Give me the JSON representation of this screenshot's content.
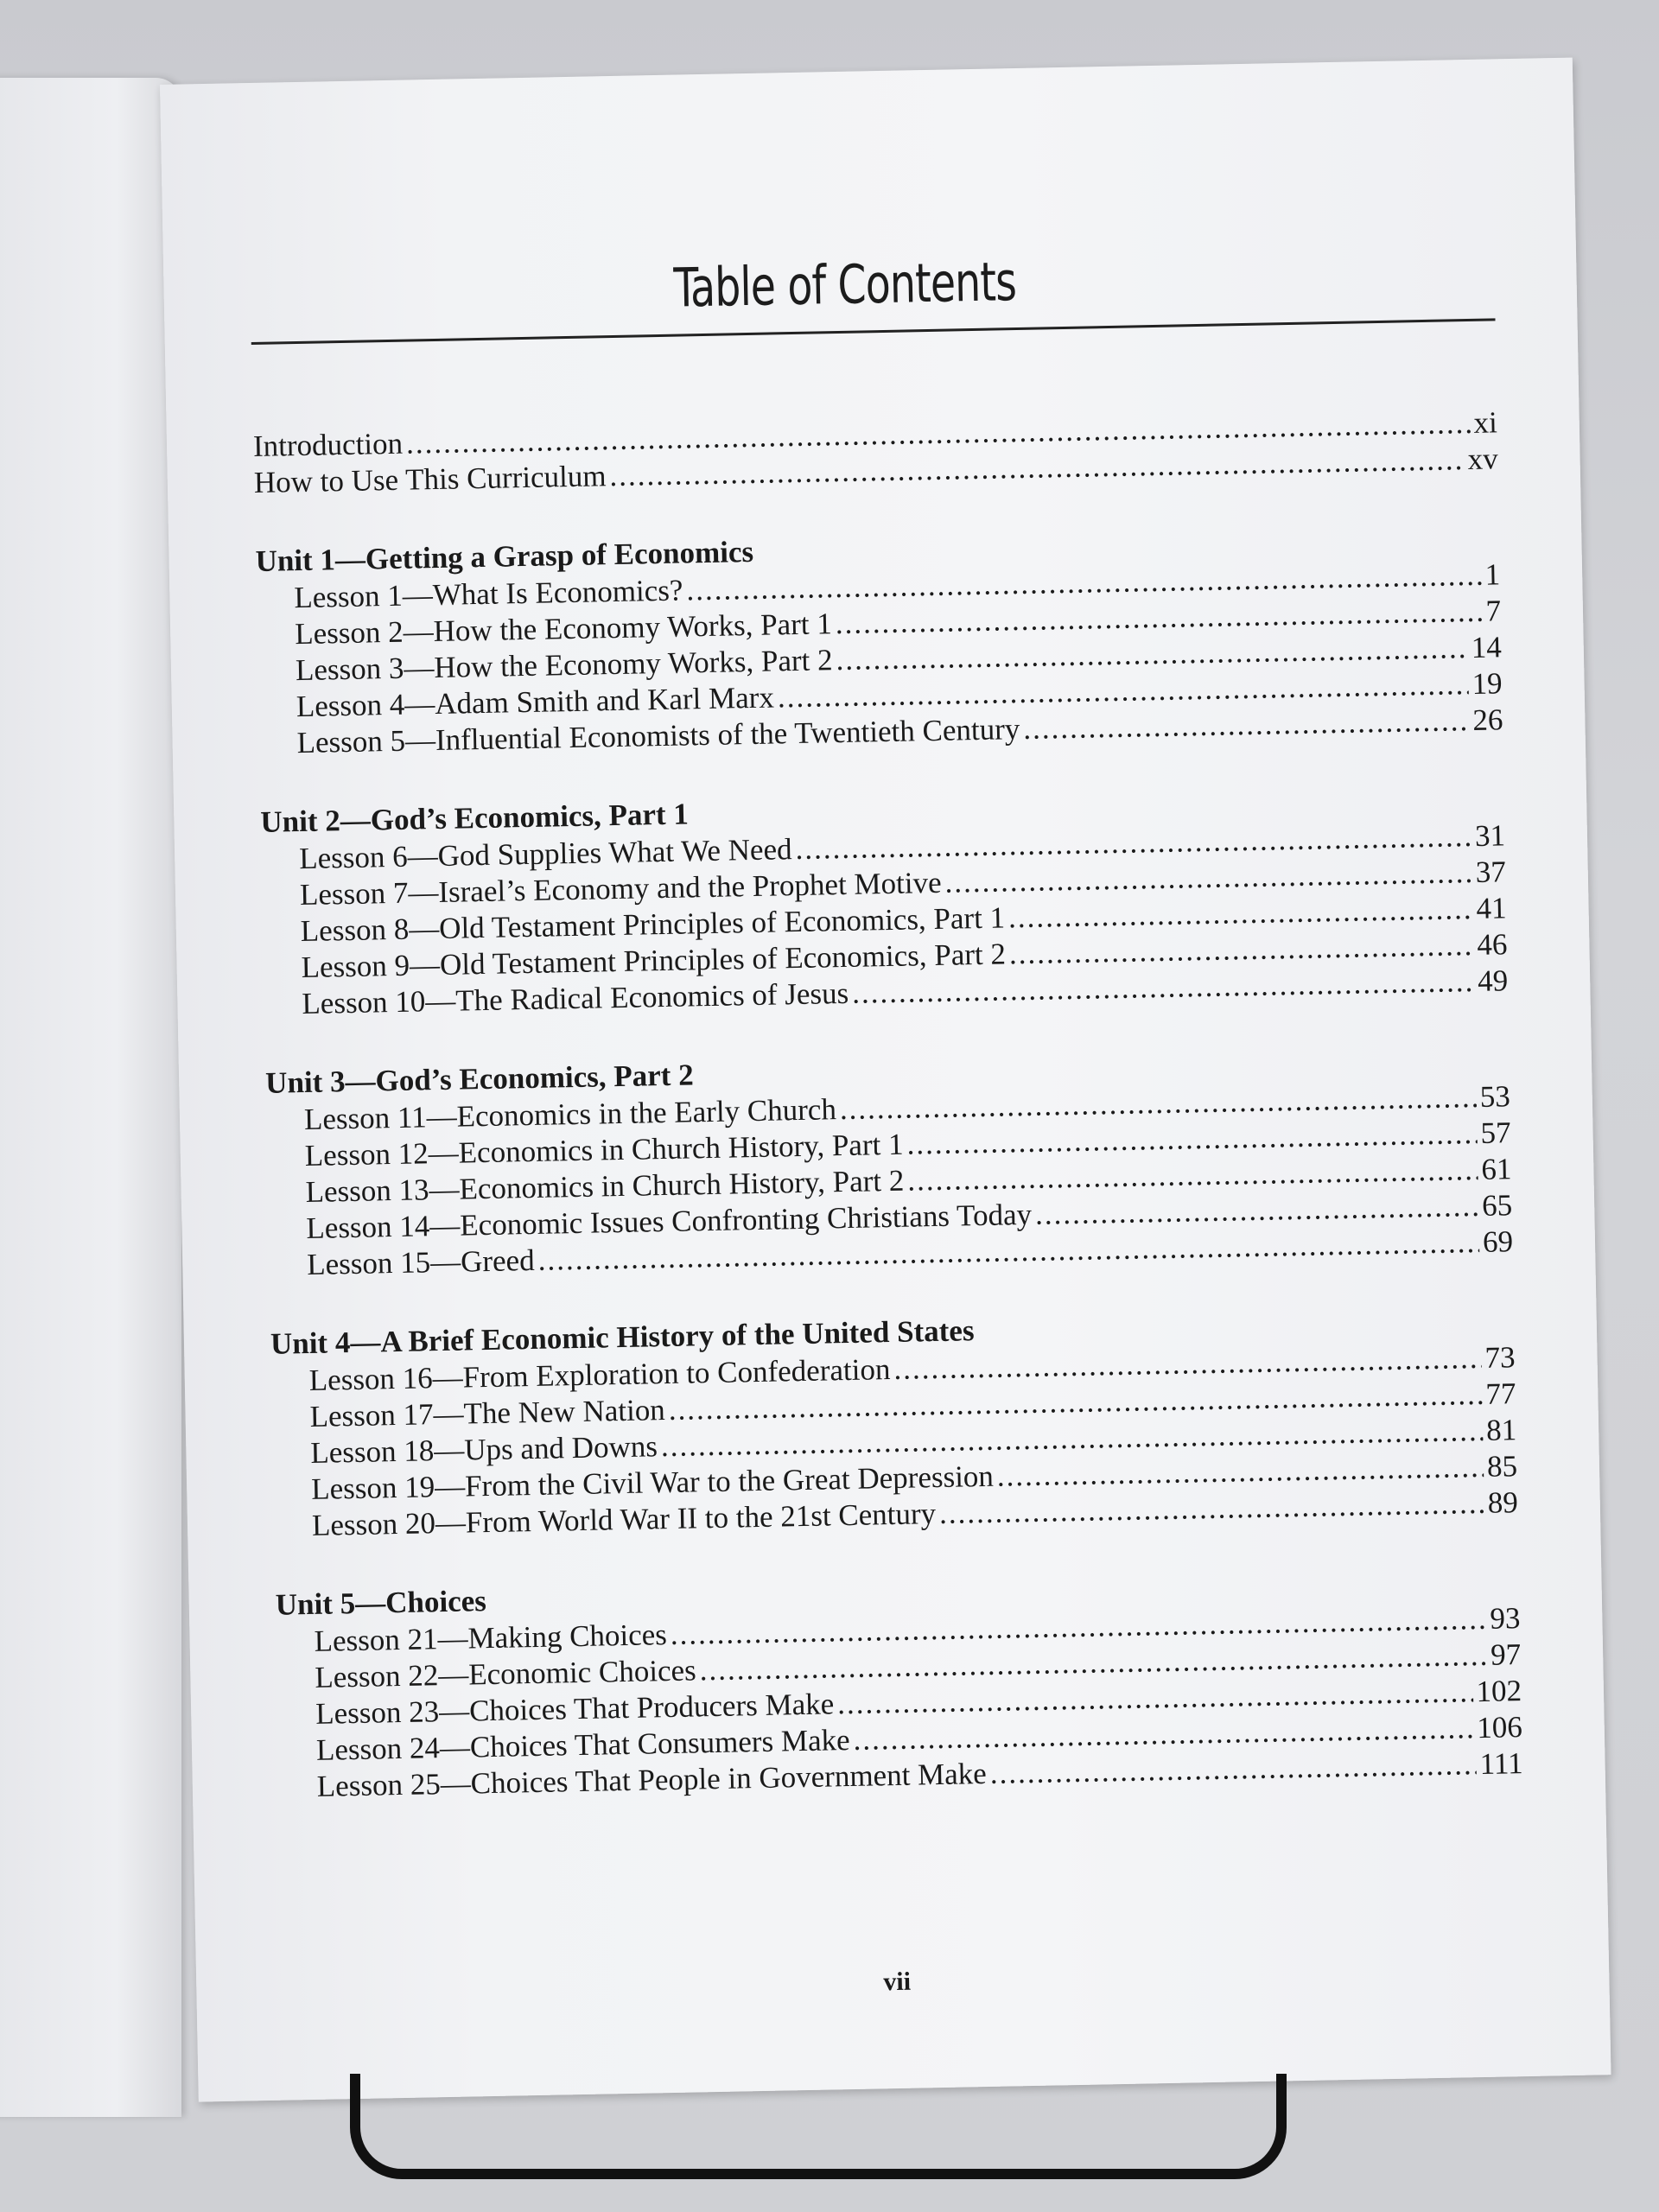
{
  "title": "Table of Contents",
  "front": [
    {
      "title": "Introduction",
      "page": "xi"
    },
    {
      "title": "How to Use This Curriculum",
      "page": "xv"
    }
  ],
  "units": [
    {
      "title": "Unit 1—Getting a Grasp of Economics",
      "lessons": [
        {
          "title": "Lesson 1—What Is Economics?",
          "page": "1"
        },
        {
          "title": "Lesson 2—How the Economy Works, Part 1",
          "page": "7"
        },
        {
          "title": "Lesson 3—How the Economy Works, Part 2",
          "page": "14"
        },
        {
          "title": "Lesson 4—Adam Smith and Karl Marx",
          "page": "19"
        },
        {
          "title": "Lesson 5—Influential Economists of the Twentieth Century",
          "page": "26"
        }
      ]
    },
    {
      "title": "Unit 2—God’s Economics, Part 1",
      "lessons": [
        {
          "title": "Lesson 6—God Supplies What We Need",
          "page": "31"
        },
        {
          "title": "Lesson 7—Israel’s Economy and the Prophet Motive",
          "page": "37"
        },
        {
          "title": "Lesson 8—Old Testament Principles of Economics, Part 1",
          "page": "41"
        },
        {
          "title": "Lesson 9—Old Testament Principles of Economics, Part 2",
          "page": "46"
        },
        {
          "title": "Lesson 10—The Radical Economics of Jesus",
          "page": "49"
        }
      ]
    },
    {
      "title": "Unit 3—God’s Economics, Part 2",
      "lessons": [
        {
          "title": "Lesson 11—Economics in the Early Church",
          "page": "53"
        },
        {
          "title": "Lesson 12—Economics in Church History, Part 1",
          "page": "57"
        },
        {
          "title": "Lesson 13—Economics in Church History, Part 2",
          "page": "61"
        },
        {
          "title": "Lesson 14—Economic Issues Confronting Christians Today",
          "page": "65"
        },
        {
          "title": "Lesson 15—Greed",
          "page": "69"
        }
      ]
    },
    {
      "title": "Unit 4—A Brief Economic History of the United States",
      "lessons": [
        {
          "title": "Lesson 16—From Exploration to Confederation",
          "page": "73"
        },
        {
          "title": "Lesson 17—The New Nation",
          "page": "77"
        },
        {
          "title": "Lesson 18—Ups and Downs",
          "page": "81"
        },
        {
          "title": "Lesson 19—From the Civil War to the Great Depression",
          "page": "85"
        },
        {
          "title": "Lesson 20—From World War II to the 21st Century",
          "page": "89"
        }
      ]
    },
    {
      "title": "Unit 5—Choices",
      "lessons": [
        {
          "title": "Lesson 21—Making Choices",
          "page": "93"
        },
        {
          "title": "Lesson 22—Economic Choices",
          "page": "97"
        },
        {
          "title": "Lesson 23—Choices That Producers Make",
          "page": "102"
        },
        {
          "title": "Lesson 24—Choices That Consumers Make",
          "page": "106"
        },
        {
          "title": "Lesson 25—Choices That People in Government Make",
          "page": "111"
        }
      ]
    }
  ],
  "folio": "vii"
}
